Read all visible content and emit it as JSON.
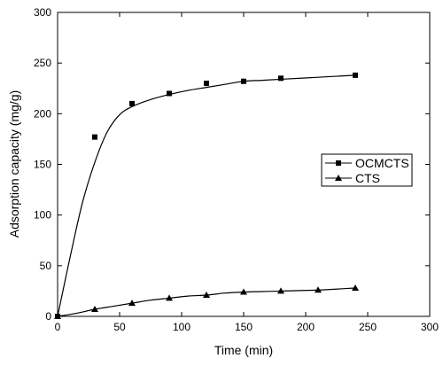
{
  "chart_data": {
    "type": "scatter",
    "title": "",
    "xlabel": "Time  (min)",
    "ylabel": "Adsorption capacity (mg/g)",
    "xlim": [
      0,
      300
    ],
    "ylim": [
      0,
      300
    ],
    "xticks": [
      0,
      50,
      100,
      150,
      200,
      250,
      300
    ],
    "yticks": [
      0,
      50,
      100,
      150,
      200,
      250,
      300
    ],
    "grid": false,
    "legend_position": "center-right",
    "series": [
      {
        "name": "OCMCTS",
        "marker": "square",
        "color": "#000000",
        "points": [
          [
            0,
            0
          ],
          [
            30,
            177
          ],
          [
            60,
            210
          ],
          [
            90,
            220
          ],
          [
            120,
            230
          ],
          [
            150,
            232
          ],
          [
            180,
            235
          ],
          [
            240,
            238
          ]
        ],
        "fit_curve": [
          [
            0,
            0
          ],
          [
            10,
            58
          ],
          [
            20,
            112
          ],
          [
            30,
            152
          ],
          [
            40,
            182
          ],
          [
            50,
            199
          ],
          [
            60,
            207
          ],
          [
            75,
            214
          ],
          [
            90,
            219
          ],
          [
            105,
            223
          ],
          [
            120,
            226
          ],
          [
            135,
            229
          ],
          [
            150,
            232
          ],
          [
            165,
            233
          ],
          [
            180,
            234
          ],
          [
            210,
            236
          ],
          [
            240,
            238
          ]
        ]
      },
      {
        "name": "CTS",
        "marker": "triangle",
        "color": "#000000",
        "points": [
          [
            0,
            0
          ],
          [
            30,
            7
          ],
          [
            60,
            13
          ],
          [
            90,
            18
          ],
          [
            120,
            21
          ],
          [
            150,
            24
          ],
          [
            180,
            25
          ],
          [
            210,
            26
          ],
          [
            240,
            28
          ]
        ],
        "fit_curve": [
          [
            0,
            0
          ],
          [
            15,
            3
          ],
          [
            30,
            7
          ],
          [
            45,
            10
          ],
          [
            60,
            13
          ],
          [
            75,
            16
          ],
          [
            90,
            18
          ],
          [
            105,
            20
          ],
          [
            120,
            21
          ],
          [
            135,
            23
          ],
          [
            150,
            24
          ],
          [
            165,
            24.5
          ],
          [
            180,
            25
          ],
          [
            210,
            26
          ],
          [
            240,
            28
          ]
        ]
      }
    ]
  }
}
